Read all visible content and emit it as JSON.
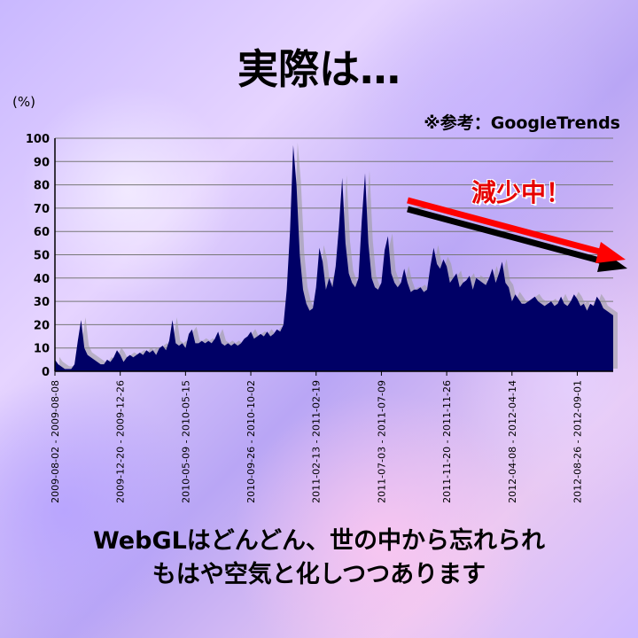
{
  "title": "実際は…",
  "source": "※参考：GoogleTrends",
  "annotation": "減少中！",
  "caption": {
    "line1": "WebGLはどんどん、世の中から忘れられ",
    "line2": "もはや空気と化しつつあります"
  },
  "chart_data": {
    "type": "area",
    "ylabel": "(%)",
    "ylim": [
      0,
      100
    ],
    "yticks": [
      0,
      10,
      20,
      30,
      40,
      50,
      60,
      70,
      80,
      90,
      100
    ],
    "grid": true,
    "xtick_labels": [
      "2009-08-02 - 2009-08-08",
      "2009-12-20 - 2009-12-26",
      "2010-05-09 - 2010-05-15",
      "2010-09-26 - 2010-10-02",
      "2011-02-13 - 2011-02-19",
      "2011-07-03 - 2011-07-09",
      "2011-11-20 - 2011-11-26",
      "2012-04-08 - 2012-04-14",
      "2012-08-26 - 2012-09-01"
    ],
    "start_week": "2009-08-02",
    "values": [
      5,
      3,
      2,
      1,
      1,
      1,
      3,
      13,
      22,
      10,
      7,
      6,
      5,
      4,
      3,
      3,
      5,
      4,
      6,
      9,
      7,
      4,
      6,
      7,
      6,
      7,
      8,
      7,
      9,
      8,
      9,
      7,
      10,
      11,
      9,
      13,
      22,
      12,
      11,
      12,
      10,
      16,
      18,
      12,
      12,
      13,
      12,
      13,
      12,
      14,
      17,
      12,
      11,
      12,
      11,
      12,
      11,
      12,
      14,
      15,
      17,
      14,
      15,
      16,
      15,
      17,
      15,
      16,
      18,
      17,
      20,
      35,
      60,
      97,
      80,
      50,
      35,
      29,
      26,
      27,
      36,
      53,
      47,
      35,
      40,
      36,
      45,
      62,
      83,
      55,
      42,
      38,
      36,
      40,
      65,
      85,
      55,
      40,
      36,
      35,
      38,
      52,
      58,
      42,
      38,
      36,
      38,
      44,
      38,
      34,
      35,
      35,
      36,
      34,
      35,
      45,
      53,
      46,
      44,
      48,
      45,
      38,
      40,
      42,
      36,
      38,
      39,
      41,
      35,
      40,
      39,
      38,
      37,
      40,
      44,
      38,
      42,
      47,
      38,
      36,
      30,
      33,
      31,
      29,
      29,
      30,
      31,
      32,
      30,
      29,
      28,
      29,
      30,
      28,
      29,
      32,
      29,
      28,
      30,
      33,
      31,
      28,
      29,
      26,
      29,
      28,
      32,
      30,
      27,
      26,
      25,
      24
    ]
  }
}
